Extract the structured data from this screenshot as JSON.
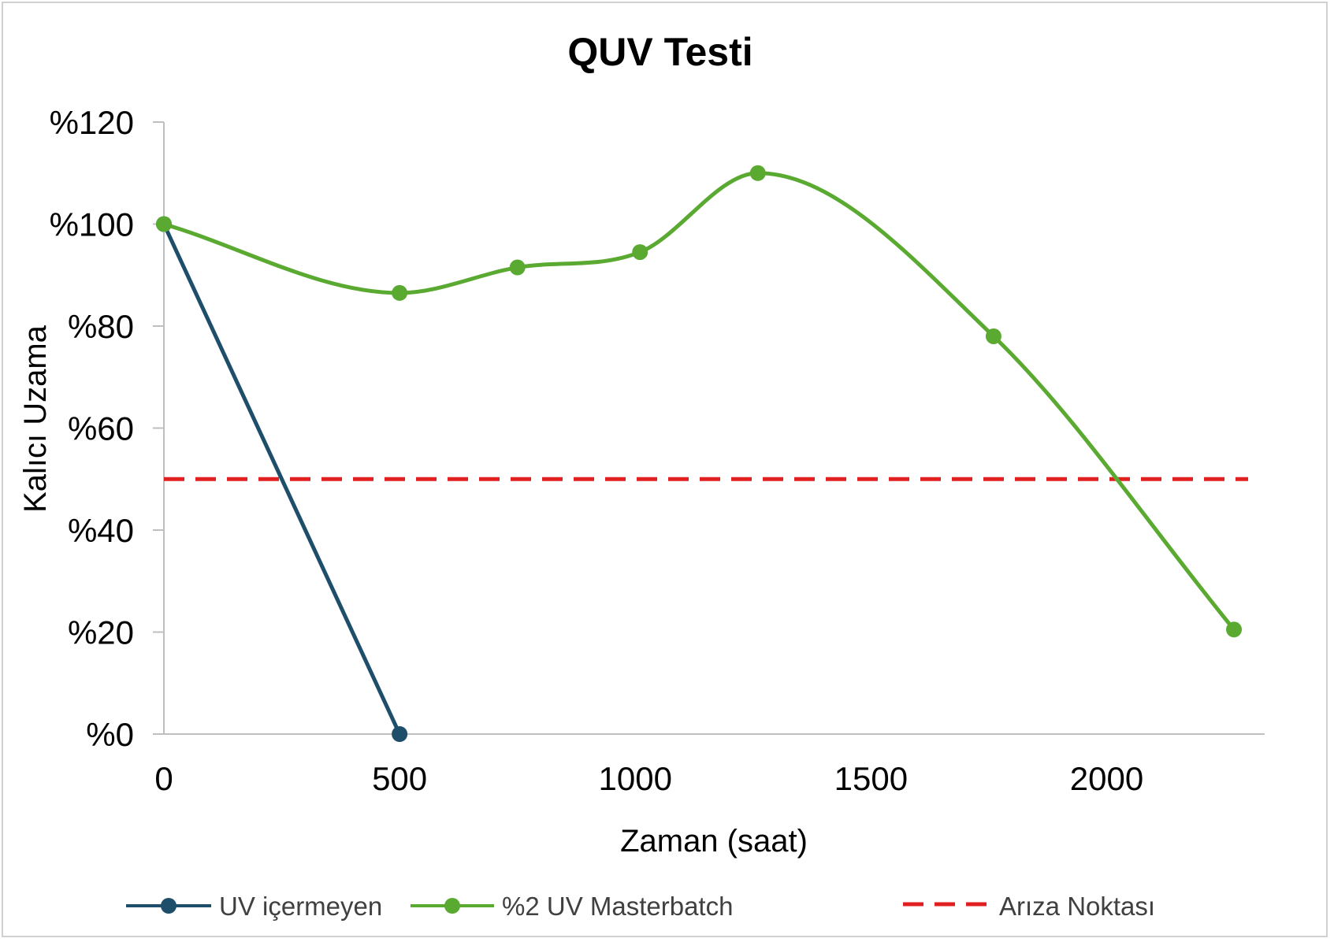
{
  "chart_data": {
    "type": "line",
    "title": "QUV Testi",
    "xlabel": "Zaman (saat)",
    "ylabel": "Kalıcı Uzama",
    "xlim": [
      0,
      2300
    ],
    "ylim": [
      0,
      120
    ],
    "x_ticks": [
      0,
      500,
      1000,
      1500,
      2000
    ],
    "y_ticks": [
      0,
      20,
      40,
      60,
      80,
      100,
      120
    ],
    "y_tick_labels": [
      "%0",
      "%20",
      "%40",
      "%60",
      "%80",
      "%100",
      "%120"
    ],
    "grid": false,
    "legend_position": "bottom",
    "series": [
      {
        "name": "UV içermeyen",
        "color": "#1f4e6b",
        "smooth": false,
        "x": [
          0,
          500
        ],
        "y": [
          100,
          0
        ]
      },
      {
        "name": "%2 UV Masterbatch",
        "color": "#5aaa32",
        "smooth": true,
        "x": [
          0,
          500,
          750,
          1010,
          1260,
          1760,
          2270
        ],
        "y": [
          100,
          86.5,
          91.5,
          94.5,
          110,
          78,
          20.5
        ]
      }
    ],
    "reference_lines": [
      {
        "name": "Arıza Noktası",
        "color": "#e02020",
        "style": "dashed",
        "y": 50
      }
    ]
  }
}
